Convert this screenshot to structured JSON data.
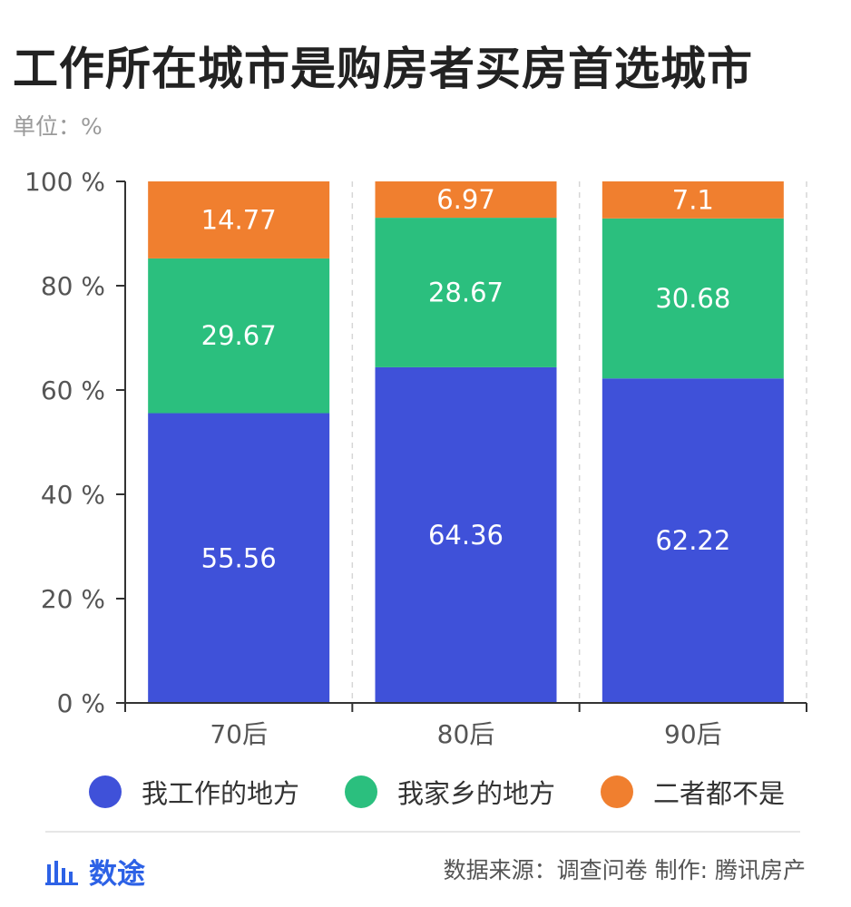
{
  "title": "工作所在城市是购房者买房首选城市",
  "unit_label": "单位：%",
  "chart_data": {
    "type": "bar",
    "stacked": true,
    "categories": [
      "70后",
      "80后",
      "90后"
    ],
    "series": [
      {
        "name": "我工作的地方",
        "values": [
          55.56,
          64.36,
          62.22
        ],
        "color": "#3f51d9"
      },
      {
        "name": "我家乡的地方",
        "values": [
          29.67,
          28.67,
          30.68
        ],
        "color": "#2bbf7e"
      },
      {
        "name": "二者都不是",
        "values": [
          14.77,
          6.97,
          7.1
        ],
        "color": "#f07f2f"
      }
    ],
    "ylim": [
      0,
      100
    ],
    "yticks": [
      0,
      20,
      40,
      60,
      80,
      100
    ],
    "ytick_labels": [
      "0 %",
      "20 %",
      "40 %",
      "60 %",
      "80 %",
      "100 %"
    ],
    "grid": "vertical-dashed",
    "legend_position": "bottom"
  },
  "footer": {
    "brand": "数途",
    "source": "数据来源：调查问卷  制作: 腾讯房产"
  }
}
